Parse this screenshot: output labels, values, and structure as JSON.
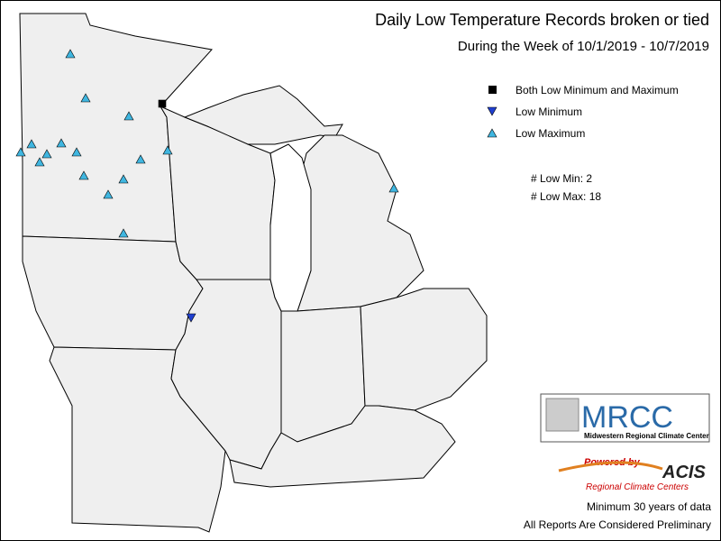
{
  "header": {
    "title": "Daily Low Temperature Records broken or tied",
    "subtitle": "During the Week of 10/1/2019 - 10/7/2019"
  },
  "legend": [
    "Both Low Minimum and Maximum",
    "Low Minimum",
    "Low Maximum"
  ],
  "counts": [
    "# Low Min: 2",
    "# Low Max: 18"
  ],
  "logo": {
    "name": "MRCC",
    "full_name": "Midwestern Regional Climate Center",
    "powered": "Powered by",
    "acis": "ACIS",
    "acis_sub": "Regional Climate Centers"
  },
  "notes": [
    "Minimum 30 years of data",
    "All Reports Are Considered Preliminary"
  ]
}
